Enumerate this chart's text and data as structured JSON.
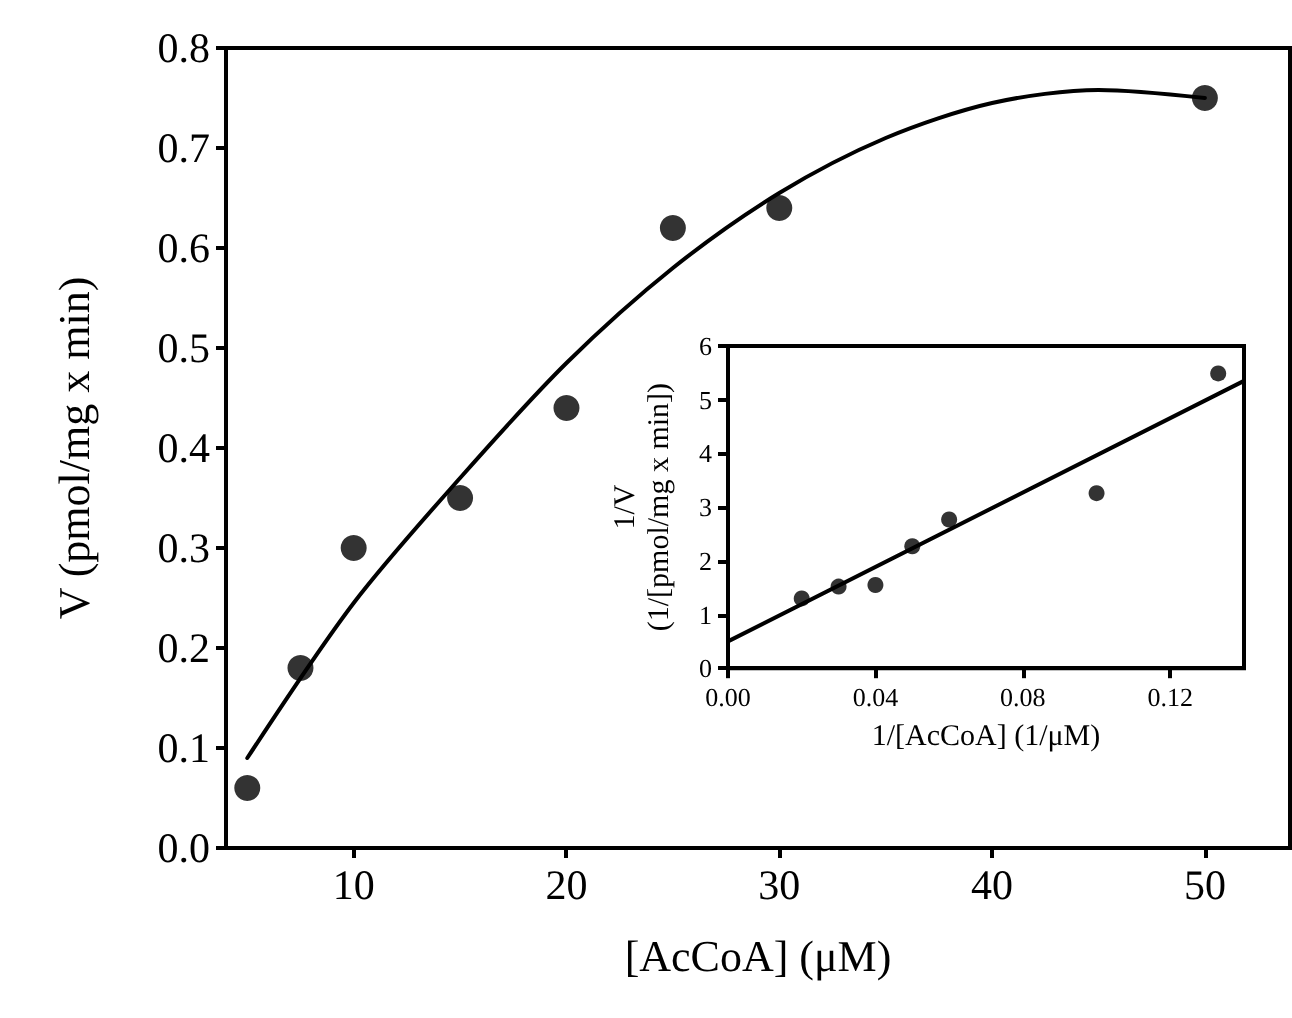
{
  "chart_data": [
    {
      "type": "scatter",
      "xlabel": "[AcCoA] (μM)",
      "ylabel": "V (pmol/mg x min)",
      "marker": "circle",
      "grid": false,
      "xlim": [
        4,
        54
      ],
      "xticks": [
        10,
        20,
        30,
        40,
        50
      ],
      "ylim": [
        0,
        0.8
      ],
      "yticks": [
        {
          "value": 0,
          "label": "0.0"
        },
        {
          "value": 0.1,
          "label": "0.1"
        },
        {
          "value": 0.2,
          "label": "0.2"
        },
        {
          "value": 0.3,
          "label": "0.3"
        },
        {
          "value": 0.4,
          "label": "0.4"
        },
        {
          "value": 0.5,
          "label": "0.5"
        },
        {
          "value": 0.6,
          "label": "0.6"
        },
        {
          "value": 0.7,
          "label": "0.7"
        },
        {
          "value": 0.8,
          "label": "0.8"
        }
      ],
      "series": [
        {
          "color": "#000000",
          "x": [
            5,
            7.5,
            10,
            15,
            20,
            25,
            30,
            50
          ],
          "values": [
            0.06,
            0.18,
            0.3,
            0.35,
            0.44,
            0.62,
            0.64,
            0.75
          ]
        },
        {
          "type": "line",
          "color": "#000000",
          "marker": "none",
          "line_style": "solid",
          "x": [
            5,
            10,
            15,
            20,
            25,
            30,
            35,
            40,
            45,
            50
          ],
          "values": [
            0.09,
            0.245,
            0.37,
            0.485,
            0.58,
            0.655,
            0.71,
            0.745,
            0.758,
            0.75
          ]
        }
      ]
    },
    {
      "type": "scatter",
      "xlabel": "1/[AcCoA] (1/μM)",
      "ylabel": "1/V\n(1/[pmol/mg x min])",
      "marker": "circle",
      "grid": false,
      "xlim": [
        0,
        0.14
      ],
      "xticks": [
        {
          "value": 0,
          "label": "0.00"
        },
        {
          "value": 0.04,
          "label": "0.04"
        },
        {
          "value": 0.08,
          "label": "0.08"
        },
        {
          "value": 0.12,
          "label": "0.12"
        }
      ],
      "ylim": [
        0,
        6
      ],
      "yticks": [
        0,
        1,
        2,
        3,
        4,
        5,
        6
      ],
      "series": [
        {
          "color": "#000000",
          "x": [
            0.02,
            0.03,
            0.04,
            0.05,
            0.06,
            0.1,
            0.133
          ],
          "values": [
            1.3,
            1.52,
            1.55,
            2.27,
            2.77,
            3.26,
            5.49
          ]
        },
        {
          "type": "line",
          "color": "#000000",
          "marker": "none",
          "line_style": "solid",
          "x": [
            0,
            0.14
          ],
          "values": [
            0.5,
            5.35
          ]
        }
      ]
    }
  ]
}
